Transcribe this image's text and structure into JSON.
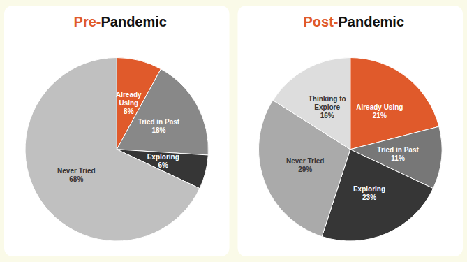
{
  "chart_data": [
    {
      "type": "pie",
      "title": "Pre-Pandemic",
      "categories": [
        "Already\nUsing",
        "Tried in Past",
        "Exploring",
        "Never Tried"
      ],
      "values": [
        8,
        18,
        6,
        68
      ],
      "value_labels": [
        "8%",
        "18%",
        "6%",
        "68%"
      ],
      "colors": [
        "#E05A2B",
        "#888888",
        "#363636",
        "#C0C0C0"
      ]
    },
    {
      "type": "pie",
      "title": "Post-Pandemic",
      "categories": [
        "Already Using",
        "Tried in Past",
        "Exploring",
        "Never Tried",
        "Thinking to\nExplore"
      ],
      "values": [
        21,
        11,
        23,
        29,
        16
      ],
      "value_labels": [
        "21%",
        "11%",
        "23%",
        "29%",
        "16%"
      ],
      "colors": [
        "#E05A2B",
        "#777777",
        "#363636",
        "#AAAAAA",
        "#DDDDDD"
      ]
    }
  ]
}
